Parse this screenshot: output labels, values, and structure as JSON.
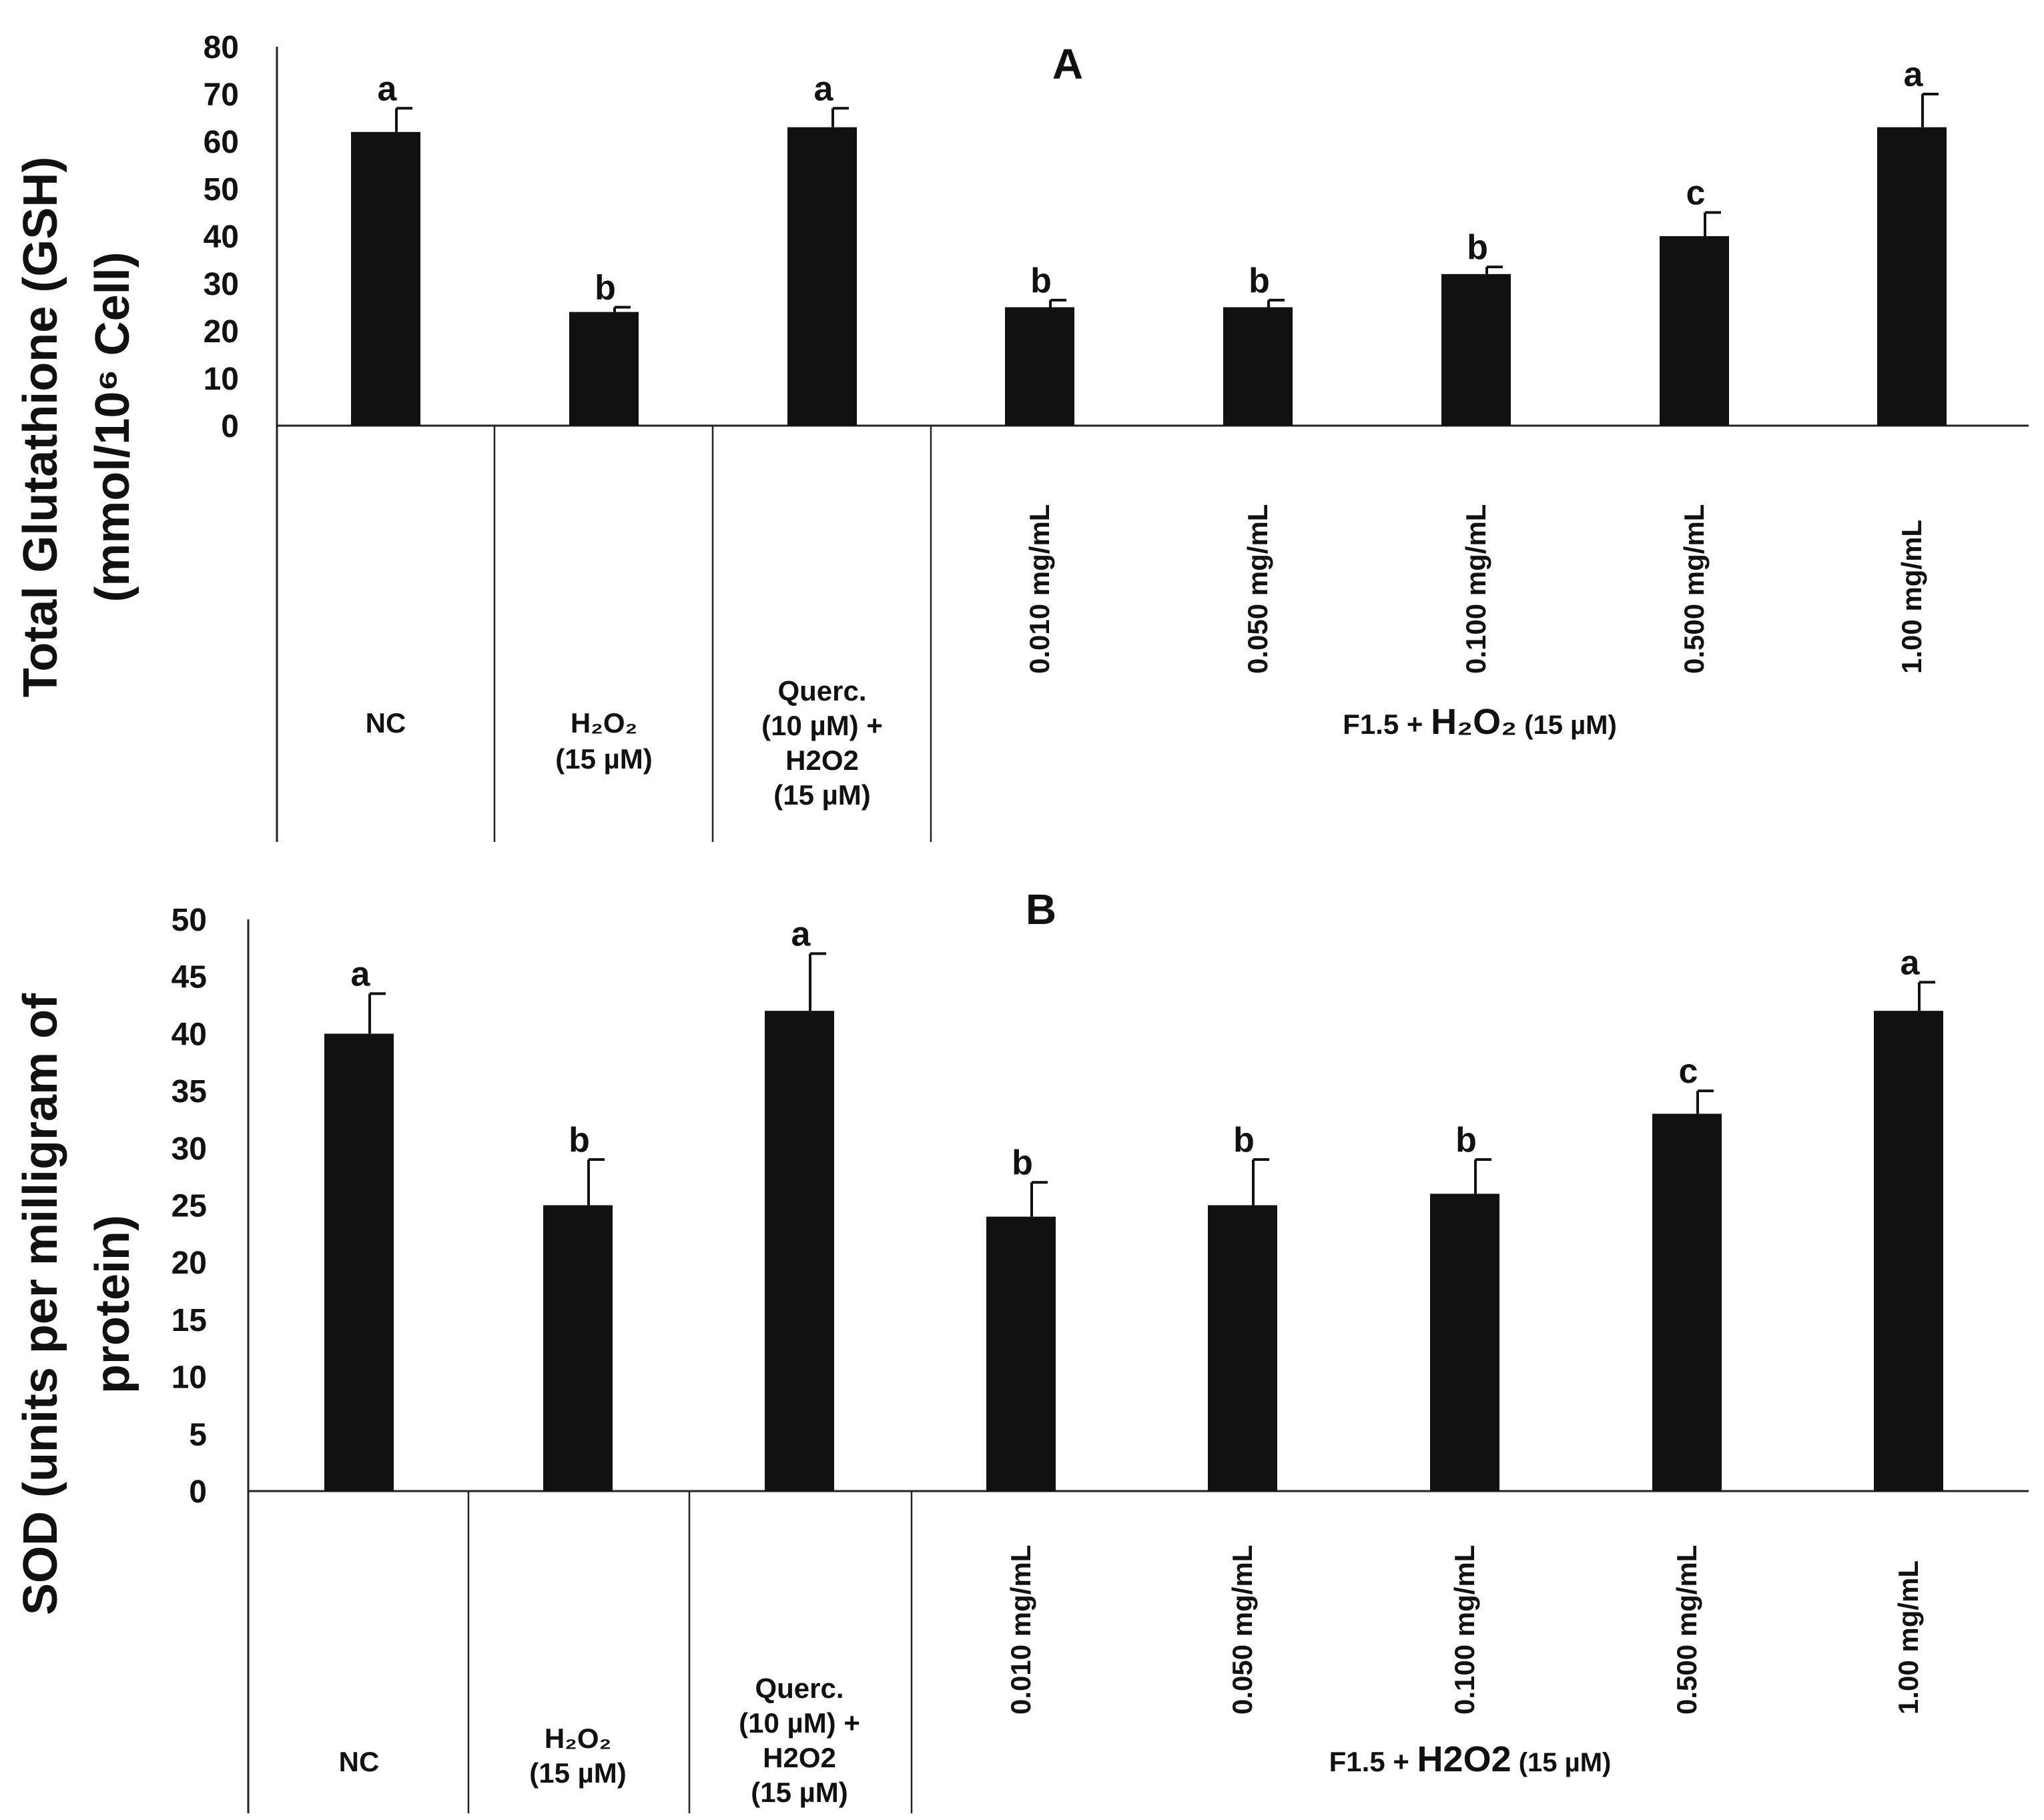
{
  "chart_data": [
    {
      "type": "bar",
      "panel_label": "A",
      "ylabel_line1": "Total Glutathione (GSH)",
      "ylabel_line2": "(mmol/10⁶ Cell)",
      "ylim": [
        0,
        80
      ],
      "ytick_labels": [
        "80",
        "70",
        "60",
        "50",
        "40",
        "30",
        "20",
        "10",
        "0"
      ],
      "bar_color": "#111111",
      "categories": [
        "NC",
        "H2O2 (15 µM)",
        "Querc. (10 µM) + H2O2 (15 µM)",
        "0.010 mg/mL",
        "0.050 mg/mL",
        "0.100 mg/mL",
        "0.500 mg/mL",
        "1.00 mg/mL"
      ],
      "values": [
        62,
        24,
        63,
        25,
        25,
        32,
        40,
        63
      ],
      "errors": [
        5,
        1,
        4,
        1.5,
        1.5,
        1.5,
        5,
        7
      ],
      "significance": [
        "a",
        "b",
        "a",
        "b",
        "b",
        "b",
        "c",
        "a"
      ],
      "group_labels": {
        "nc": [
          "NC"
        ],
        "h2o2": [
          "H₂O₂",
          "(15 µM)"
        ],
        "querc": [
          "Querc.",
          "(10 µM) +",
          "H2O2",
          "(15 µM)"
        ],
        "f15_prefix": "F1.5 + ",
        "f15_h2o2": "H₂O₂",
        "f15_conc": "(15 µM)"
      }
    },
    {
      "type": "bar",
      "panel_label": "B",
      "ylabel_line1": "SOD (units per milligram of",
      "ylabel_line2": "protein)",
      "ylim": [
        0,
        50
      ],
      "ytick_labels": [
        "50",
        "45",
        "40",
        "35",
        "30",
        "25",
        "20",
        "15",
        "10",
        "5",
        "0"
      ],
      "bar_color": "#111111",
      "categories": [
        "NC",
        "H2O2 (15 µM)",
        "Querc. (10 µM) + H2O2 (15 µM)",
        "0.010 mg/mL",
        "0.050 mg/mL",
        "0.100 mg/mL",
        "0.500 mg/mL",
        "1.00 mg/mL"
      ],
      "values": [
        40,
        25,
        42,
        24,
        25,
        26,
        33,
        42
      ],
      "errors": [
        3.5,
        4,
        5,
        3,
        4,
        3,
        2,
        2.5
      ],
      "significance": [
        "a",
        "b",
        "a",
        "b",
        "b",
        "b",
        "c",
        "a"
      ],
      "group_labels": {
        "nc": [
          "NC"
        ],
        "h2o2": [
          "H₂O₂",
          "(15 µM)"
        ],
        "querc": [
          "Querc.",
          "(10 µM) +",
          "H2O2",
          "(15 µM)"
        ],
        "f15_prefix": "F1.5 + ",
        "f15_h2o2": "H2O2",
        "f15_conc": "(15 µM)"
      }
    }
  ]
}
